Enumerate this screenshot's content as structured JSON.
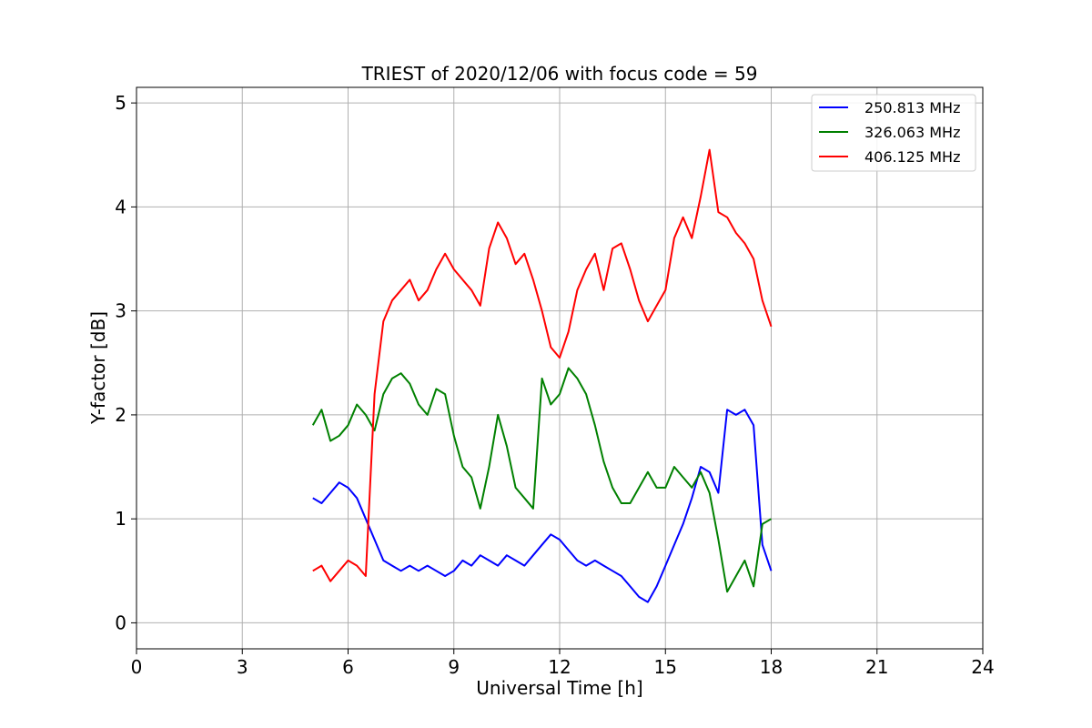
{
  "chart_data": {
    "type": "line",
    "title": "TRIEST of 2020/12/06 with focus code = 59",
    "xlabel": "Universal Time [h]",
    "ylabel": "Y-factor [dB]",
    "xlim": [
      0,
      24
    ],
    "ylim": [
      -0.25,
      5.15
    ],
    "xticks": [
      0,
      3,
      6,
      9,
      12,
      15,
      18,
      21,
      24
    ],
    "yticks": [
      0,
      1,
      2,
      3,
      4,
      5
    ],
    "grid": true,
    "legend_position": "top-right",
    "series": [
      {
        "name": "250.813 MHz",
        "color": "#0000ff",
        "x": [
          5.0,
          5.25,
          5.5,
          5.75,
          6.0,
          6.25,
          6.5,
          6.75,
          7.0,
          7.25,
          7.5,
          7.75,
          8.0,
          8.25,
          8.5,
          8.75,
          9.0,
          9.25,
          9.5,
          9.75,
          10.0,
          10.25,
          10.5,
          10.75,
          11.0,
          11.25,
          11.5,
          11.75,
          12.0,
          12.25,
          12.5,
          12.75,
          13.0,
          13.25,
          13.5,
          13.75,
          14.0,
          14.25,
          14.5,
          14.75,
          15.0,
          15.25,
          15.5,
          15.75,
          16.0,
          16.25,
          16.5,
          16.75,
          17.0,
          17.25,
          17.5,
          17.75,
          18.0
        ],
        "values": [
          1.2,
          1.15,
          1.25,
          1.35,
          1.3,
          1.2,
          1.0,
          0.8,
          0.6,
          0.55,
          0.5,
          0.55,
          0.5,
          0.55,
          0.5,
          0.45,
          0.5,
          0.6,
          0.55,
          0.65,
          0.6,
          0.55,
          0.65,
          0.6,
          0.55,
          0.65,
          0.75,
          0.85,
          0.8,
          0.7,
          0.6,
          0.55,
          0.6,
          0.55,
          0.5,
          0.45,
          0.35,
          0.25,
          0.2,
          0.35,
          0.55,
          0.75,
          0.95,
          1.2,
          1.5,
          1.45,
          1.25,
          2.05,
          2.0,
          2.05,
          1.9,
          0.75,
          0.5
        ]
      },
      {
        "name": "326.063 MHz",
        "color": "#008000",
        "x": [
          5.0,
          5.25,
          5.5,
          5.75,
          6.0,
          6.25,
          6.5,
          6.75,
          7.0,
          7.25,
          7.5,
          7.75,
          8.0,
          8.25,
          8.5,
          8.75,
          9.0,
          9.25,
          9.5,
          9.75,
          10.0,
          10.25,
          10.5,
          10.75,
          11.0,
          11.25,
          11.5,
          11.75,
          12.0,
          12.25,
          12.5,
          12.75,
          13.0,
          13.25,
          13.5,
          13.75,
          14.0,
          14.25,
          14.5,
          14.75,
          15.0,
          15.25,
          15.5,
          15.75,
          16.0,
          16.25,
          16.5,
          16.75,
          17.0,
          17.25,
          17.5,
          17.75,
          18.0
        ],
        "values": [
          1.9,
          2.05,
          1.75,
          1.8,
          1.9,
          2.1,
          2.0,
          1.85,
          2.2,
          2.35,
          2.4,
          2.3,
          2.1,
          2.0,
          2.25,
          2.2,
          1.8,
          1.5,
          1.4,
          1.1,
          1.5,
          2.0,
          1.7,
          1.3,
          1.2,
          1.1,
          2.35,
          2.1,
          2.2,
          2.45,
          2.35,
          2.2,
          1.9,
          1.55,
          1.3,
          1.15,
          1.15,
          1.3,
          1.45,
          1.3,
          1.3,
          1.5,
          1.4,
          1.3,
          1.45,
          1.25,
          0.8,
          0.3,
          0.45,
          0.6,
          0.35,
          0.95,
          1.0
        ]
      },
      {
        "name": "406.125 MHz",
        "color": "#ff0000",
        "x": [
          5.0,
          5.25,
          5.5,
          5.75,
          6.0,
          6.25,
          6.5,
          6.75,
          7.0,
          7.25,
          7.5,
          7.75,
          8.0,
          8.25,
          8.5,
          8.75,
          9.0,
          9.25,
          9.5,
          9.75,
          10.0,
          10.25,
          10.5,
          10.75,
          11.0,
          11.25,
          11.5,
          11.75,
          12.0,
          12.25,
          12.5,
          12.75,
          13.0,
          13.25,
          13.5,
          13.75,
          14.0,
          14.25,
          14.5,
          14.75,
          15.0,
          15.25,
          15.5,
          15.75,
          16.0,
          16.25,
          16.5,
          16.75,
          17.0,
          17.25,
          17.5,
          17.75,
          18.0
        ],
        "values": [
          0.5,
          0.55,
          0.4,
          0.5,
          0.6,
          0.55,
          0.45,
          2.2,
          2.9,
          3.1,
          3.2,
          3.3,
          3.1,
          3.2,
          3.4,
          3.55,
          3.4,
          3.3,
          3.2,
          3.05,
          3.6,
          3.85,
          3.7,
          3.45,
          3.55,
          3.3,
          3.0,
          2.65,
          2.55,
          2.8,
          3.2,
          3.4,
          3.55,
          3.2,
          3.6,
          3.65,
          3.4,
          3.1,
          2.9,
          3.05,
          3.2,
          3.7,
          3.9,
          3.7,
          4.1,
          4.55,
          3.95,
          3.9,
          3.75,
          3.65,
          3.5,
          3.1,
          2.85
        ]
      }
    ]
  }
}
